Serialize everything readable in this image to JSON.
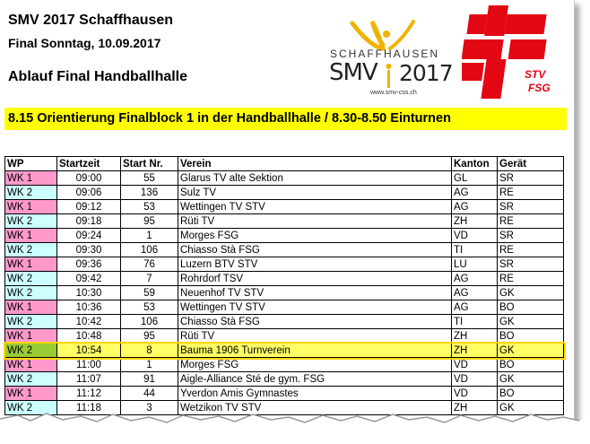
{
  "header": {
    "title": "SMV 2017 Schaffhausen",
    "subtitle": "Final Sonntag, 10.09.2017",
    "section": "Ablauf Final Handballhalle"
  },
  "logos": {
    "smv": {
      "city": "SCHAFFHAUSEN",
      "name": "SMV",
      "year": "2017",
      "url": "www.smv-css.ch"
    },
    "stv": {
      "line1": "STV",
      "line2": "FSG"
    }
  },
  "banner": "8.15 Orientierung Finalblock 1 in der Handballhalle /  8.30-8.50 Einturnen",
  "colors": {
    "wk1": "#ff99cc",
    "wk2": "#ccffff",
    "wk2_highlight": "#99cc33",
    "highlight": "#ffff66",
    "banner": "#ffff00",
    "stv_red": "#e30613"
  },
  "table": {
    "columns": [
      "WP",
      "Startzeit",
      "Start Nr.",
      "Verein",
      "Kanton",
      "Gerät"
    ],
    "rows": [
      {
        "wp": "WK 1",
        "time": "09:00",
        "nr": "55",
        "verein": "Glarus TV alte Sektion",
        "kanton": "GL",
        "geraet": "SR"
      },
      {
        "wp": "WK 2",
        "time": "09:06",
        "nr": "136",
        "verein": "Sulz TV",
        "kanton": "AG",
        "geraet": "RE"
      },
      {
        "wp": "WK 1",
        "time": "09:12",
        "nr": "53",
        "verein": "Wettingen TV STV",
        "kanton": "AG",
        "geraet": "SR"
      },
      {
        "wp": "WK 2",
        "time": "09:18",
        "nr": "95",
        "verein": "Rüti TV",
        "kanton": "ZH",
        "geraet": "RE"
      },
      {
        "wp": "WK 1",
        "time": "09:24",
        "nr": "1",
        "verein": "Morges FSG",
        "kanton": "VD",
        "geraet": "SR"
      },
      {
        "wp": "WK 2",
        "time": "09:30",
        "nr": "106",
        "verein": "Chiasso Stà FSG",
        "kanton": "TI",
        "geraet": "RE"
      },
      {
        "wp": "WK 1",
        "time": "09:36",
        "nr": "76",
        "verein": "Luzern BTV STV",
        "kanton": "LU",
        "geraet": "SR"
      },
      {
        "wp": "WK 2",
        "time": "09:42",
        "nr": "7",
        "verein": "Rohrdorf TSV",
        "kanton": "AG",
        "geraet": "RE"
      },
      {
        "wp": "WK 2",
        "time": "10:30",
        "nr": "59",
        "verein": "Neuenhof TV STV",
        "kanton": "AG",
        "geraet": "GK"
      },
      {
        "wp": "WK 1",
        "time": "10:36",
        "nr": "53",
        "verein": "Wettingen TV STV",
        "kanton": "AG",
        "geraet": "BO"
      },
      {
        "wp": "WK 2",
        "time": "10:42",
        "nr": "106",
        "verein": "Chiasso Stà FSG",
        "kanton": "TI",
        "geraet": "GK"
      },
      {
        "wp": "WK 1",
        "time": "10:48",
        "nr": "95",
        "verein": "Rüti TV",
        "kanton": "ZH",
        "geraet": "BO"
      },
      {
        "wp": "WK 2",
        "time": "10:54",
        "nr": "8",
        "verein": "Bauma 1906 Turnverein",
        "kanton": "ZH",
        "geraet": "GK",
        "highlight": true
      },
      {
        "wp": "WK 1",
        "time": "11:00",
        "nr": "1",
        "verein": "Morges FSG",
        "kanton": "VD",
        "geraet": "BO"
      },
      {
        "wp": "WK 2",
        "time": "11:07",
        "nr": "91",
        "verein": "Aigle-Alliance Sté de gym. FSG",
        "kanton": "VD",
        "geraet": "GK"
      },
      {
        "wp": "WK 1",
        "time": "11:12",
        "nr": "44",
        "verein": "Yverdon Amis Gymnastes",
        "kanton": "VD",
        "geraet": "BO"
      },
      {
        "wp": "WK 2",
        "time": "11:18",
        "nr": "3",
        "verein": "Wetzikon TV STV",
        "kanton": "ZH",
        "geraet": "GK"
      }
    ]
  }
}
